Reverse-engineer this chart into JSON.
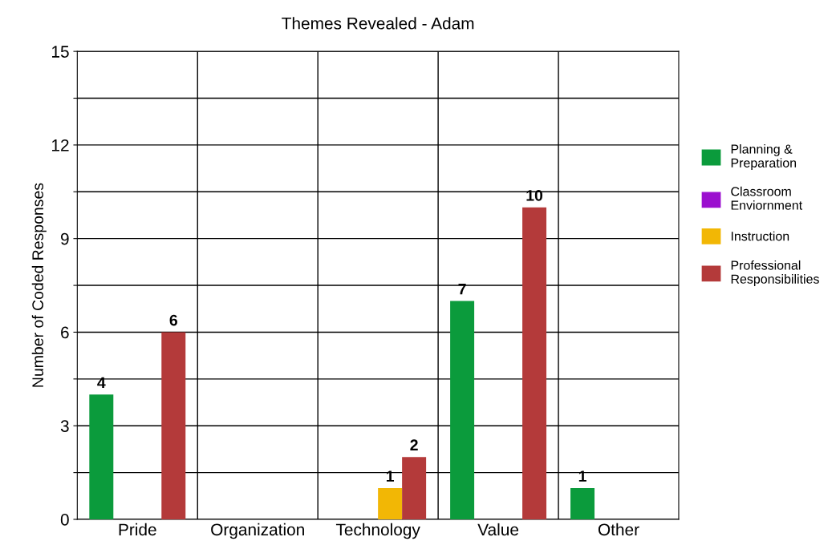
{
  "chart_data": {
    "type": "bar",
    "title": "Themes Revealed - Adam",
    "ylabel": "Number of Coded Responses",
    "categories": [
      "Pride",
      "Organization",
      "Technology",
      "Value",
      "Other"
    ],
    "series": [
      {
        "name": "Planning & Preparation",
        "color": "#0b9b3c",
        "values": [
          4,
          null,
          null,
          7,
          1
        ]
      },
      {
        "name": "Classroom Enviornment",
        "color": "#9b0fcf",
        "values": [
          null,
          null,
          null,
          null,
          null
        ]
      },
      {
        "name": "Instruction",
        "color": "#f2b705",
        "values": [
          null,
          null,
          1,
          null,
          null
        ]
      },
      {
        "name": "Professional Responsibilities",
        "color": "#b43a3a",
        "values": [
          6,
          null,
          2,
          10,
          null
        ]
      }
    ],
    "ylim": [
      0,
      15
    ],
    "yticks": [
      0,
      {
        "value": 1.5,
        "label": null
      },
      3,
      {
        "value": 4.5,
        "label": null
      },
      6,
      {
        "value": 7.5,
        "label": null
      },
      9,
      {
        "value": 10.5,
        "label": null
      },
      12,
      {
        "value": 13.5,
        "label": null
      },
      15
    ],
    "grid": true,
    "legend": "right",
    "data_labels": true
  }
}
